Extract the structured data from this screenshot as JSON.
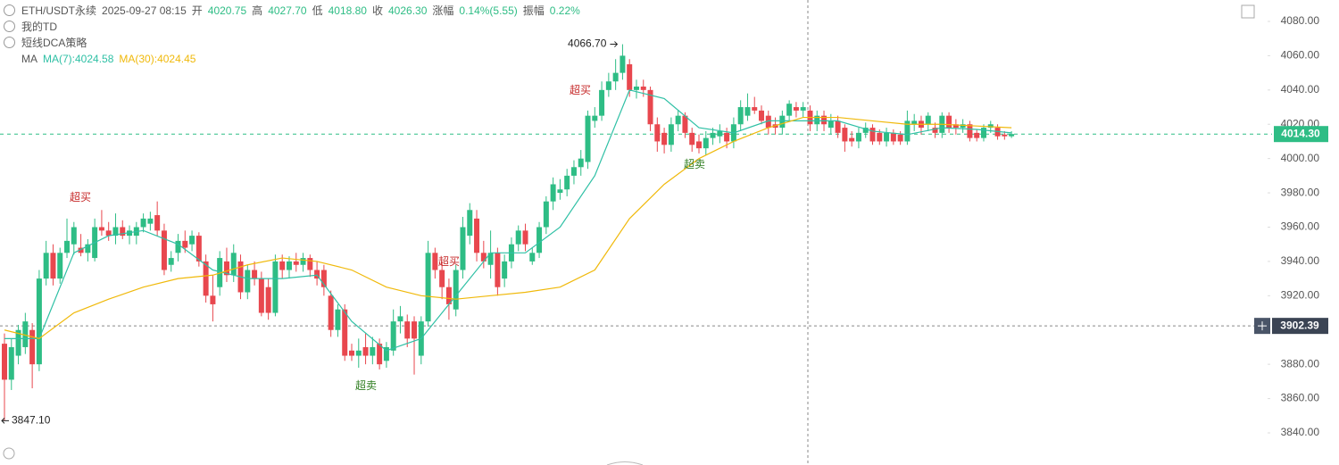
{
  "header": {
    "symbol": "ETH/USDT永续",
    "time": "2025-09-27 08:15",
    "fields": [
      {
        "label": "开",
        "value": "4020.75"
      },
      {
        "label": "高",
        "value": "4027.70"
      },
      {
        "label": "低",
        "value": "4018.80"
      },
      {
        "label": "收",
        "value": "4026.30"
      },
      {
        "label": "涨幅",
        "value": "0.14%(5.55)"
      },
      {
        "label": "振幅",
        "value": "0.22%"
      }
    ],
    "indicators": [
      "我的TD",
      "短线DCA策略"
    ],
    "ma_label": "MA"
  },
  "chart_data": {
    "type": "candlestick",
    "up_color": "#2ebd85",
    "down_color": "#e8474e",
    "ylim": [
      3821.25,
      4092.5
    ],
    "yticks": [
      {
        "value": 3840,
        "label": "3840.00"
      },
      {
        "value": 3860,
        "label": "3860.00"
      },
      {
        "value": 3880,
        "label": "3880.00"
      },
      {
        "value": 3900,
        "label": "3900.00"
      },
      {
        "value": 3920,
        "label": "3920.00"
      },
      {
        "value": 3940,
        "label": "3940.00"
      },
      {
        "value": 3960,
        "label": "3960.00"
      },
      {
        "value": 3980,
        "label": "3980.00"
      },
      {
        "value": 4000,
        "label": "4000.00"
      },
      {
        "value": 4020,
        "label": "4020.00"
      },
      {
        "value": 4040,
        "label": "4040.00"
      },
      {
        "value": 4060,
        "label": "4060.00"
      },
      {
        "value": 4080,
        "label": "4080.00"
      }
    ],
    "grid": false,
    "candles": [
      [
        3892,
        3898,
        3847.1,
        3871
      ],
      [
        3871,
        3895,
        3865,
        3890
      ],
      [
        3885,
        3903,
        3880,
        3900
      ],
      [
        3890,
        3910,
        3886,
        3905
      ],
      [
        3900,
        3904,
        3866,
        3880
      ],
      [
        3880,
        3935,
        3876,
        3930
      ],
      [
        3930,
        3952,
        3926,
        3945
      ],
      [
        3945,
        3950,
        3926,
        3930
      ],
      [
        3930,
        3948,
        3927,
        3945
      ],
      [
        3945,
        3965,
        3942,
        3952
      ],
      [
        3950,
        3963,
        3944,
        3960
      ],
      [
        3948,
        3956,
        3943,
        3945
      ],
      [
        3945,
        3953,
        3940,
        3950
      ],
      [
        3942,
        3965,
        3940,
        3960
      ],
      [
        3960,
        3970,
        3955,
        3958
      ],
      [
        3958,
        3963,
        3952,
        3955
      ],
      [
        3955,
        3968,
        3950,
        3960
      ],
      [
        3960,
        3964,
        3953,
        3955
      ],
      [
        3955,
        3961,
        3950,
        3958
      ],
      [
        3955,
        3963,
        3950,
        3960
      ],
      [
        3960,
        3968,
        3957,
        3965
      ],
      [
        3962,
        3969,
        3958,
        3965
      ],
      [
        3967,
        3975,
        3955,
        3958
      ],
      [
        3958,
        3962,
        3932,
        3935
      ],
      [
        3938,
        3946,
        3934,
        3942
      ],
      [
        3945,
        3956,
        3940,
        3952
      ],
      [
        3952,
        3958,
        3945,
        3948
      ],
      [
        3950,
        3958,
        3946,
        3955
      ],
      [
        3955,
        3957,
        3937,
        3940
      ],
      [
        3940,
        3944,
        3916,
        3920
      ],
      [
        3920,
        3932,
        3905,
        3915
      ],
      [
        3925,
        3946,
        3920,
        3942
      ],
      [
        3940,
        3948,
        3928,
        3932
      ],
      [
        3932,
        3950,
        3928,
        3945
      ],
      [
        3940,
        3944,
        3918,
        3922
      ],
      [
        3922,
        3938,
        3918,
        3935
      ],
      [
        3935,
        3940,
        3926,
        3930
      ],
      [
        3930,
        3934,
        3908,
        3910
      ],
      [
        3925,
        3930,
        3906,
        3910
      ],
      [
        3910,
        3944,
        3908,
        3940
      ],
      [
        3940,
        3944,
        3930,
        3935
      ],
      [
        3935,
        3943,
        3930,
        3940
      ],
      [
        3940,
        3945,
        3934,
        3938
      ],
      [
        3938,
        3945,
        3934,
        3942
      ],
      [
        3942,
        3944,
        3931,
        3935
      ],
      [
        3935,
        3940,
        3926,
        3930
      ],
      [
        3935,
        3938,
        3920,
        3925
      ],
      [
        3920,
        3923,
        3896,
        3900
      ],
      [
        3900,
        3915,
        3896,
        3912
      ],
      [
        3912,
        3915,
        3882,
        3885
      ],
      [
        3888,
        3892,
        3882,
        3885
      ],
      [
        3885,
        3895,
        3878,
        3888
      ],
      [
        3890,
        3898,
        3880,
        3885
      ],
      [
        3885,
        3896,
        3880,
        3890
      ],
      [
        3892,
        3895,
        3877,
        3880
      ],
      [
        3882,
        3893,
        3878,
        3890
      ],
      [
        3888,
        3912,
        3885,
        3905
      ],
      [
        3905,
        3914,
        3898,
        3908
      ],
      [
        3905,
        3909,
        3890,
        3895
      ],
      [
        3905,
        3908,
        3874,
        3895
      ],
      [
        3885,
        3908,
        3880,
        3905
      ],
      [
        3905,
        3952,
        3902,
        3945
      ],
      [
        3945,
        3948,
        3930,
        3935
      ],
      [
        3935,
        3940,
        3918,
        3925
      ],
      [
        3925,
        3930,
        3906,
        3915
      ],
      [
        3912,
        3938,
        3908,
        3935
      ],
      [
        3935,
        3966,
        3930,
        3960
      ],
      [
        3955,
        3974,
        3950,
        3970
      ],
      [
        3965,
        3970,
        3940,
        3945
      ],
      [
        3945,
        3952,
        3936,
        3940
      ],
      [
        3938,
        3958,
        3930,
        3945
      ],
      [
        3945,
        3948,
        3920,
        3925
      ],
      [
        3930,
        3944,
        3925,
        3940
      ],
      [
        3940,
        3954,
        3936,
        3950
      ],
      [
        3950,
        3961,
        3946,
        3958
      ],
      [
        3958,
        3962,
        3946,
        3950
      ],
      [
        3940,
        3948,
        3938,
        3945
      ],
      [
        3945,
        3963,
        3942,
        3960
      ],
      [
        3960,
        3978,
        3956,
        3975
      ],
      [
        3975,
        3989,
        3970,
        3985
      ],
      [
        3980,
        3988,
        3976,
        3982
      ],
      [
        3982,
        3994,
        3978,
        3990
      ],
      [
        3990,
        3999,
        3985,
        3995
      ],
      [
        3995,
        4005,
        3990,
        4000
      ],
      [
        3998,
        4028,
        3994,
        4025
      ],
      [
        4022,
        4030,
        4018,
        4025
      ],
      [
        4025,
        4045,
        4022,
        4040
      ],
      [
        4040,
        4050,
        4036,
        4045
      ],
      [
        4045,
        4058,
        4040,
        4050
      ],
      [
        4050,
        4066.7,
        4046,
        4060
      ],
      [
        4055,
        4058,
        4036,
        4040
      ],
      [
        4040,
        4046,
        4035,
        4042
      ],
      [
        4042,
        4046,
        4036,
        4040
      ],
      [
        4040,
        4042,
        4016,
        4020
      ],
      [
        4020,
        4024,
        4004,
        4010
      ],
      [
        4015,
        4018,
        4003,
        4008
      ],
      [
        4008,
        4024,
        4004,
        4020
      ],
      [
        4020,
        4028,
        4016,
        4025
      ],
      [
        4025,
        4027,
        4012,
        4015
      ],
      [
        4015,
        4018,
        4004,
        4008
      ],
      [
        4010,
        4014,
        4003,
        4006
      ],
      [
        4006,
        4016,
        4002,
        4012
      ],
      [
        4012,
        4018,
        4008,
        4015
      ],
      [
        4013,
        4020,
        4009,
        4016
      ],
      [
        4015,
        4018,
        4006,
        4010
      ],
      [
        4010,
        4024,
        4006,
        4020
      ],
      [
        4020,
        4034,
        4016,
        4030
      ],
      [
        4025,
        4038,
        4022,
        4030
      ],
      [
        4030,
        4036,
        4026,
        4028
      ],
      [
        4028,
        4031,
        4020,
        4022
      ],
      [
        4025,
        4028,
        4014,
        4018
      ],
      [
        4020,
        4024,
        4014,
        4018
      ],
      [
        4018,
        4028,
        4014,
        4025
      ],
      [
        4025,
        4034,
        4022,
        4032
      ],
      [
        4030,
        4033,
        4024,
        4028
      ],
      [
        4028,
        4033,
        4024,
        4030
      ],
      [
        4028,
        4031,
        4016,
        4020
      ],
      [
        4020,
        4028,
        4016,
        4025
      ],
      [
        4025,
        4028,
        4016,
        4020
      ],
      [
        4018,
        4026,
        4014,
        4022
      ],
      [
        4022,
        4025,
        4012,
        4015
      ],
      [
        4018,
        4020,
        4004,
        4010
      ],
      [
        4012,
        4016,
        4007,
        4010
      ],
      [
        4010,
        4018,
        4006,
        4015
      ],
      [
        4015,
        4021,
        4012,
        4018
      ],
      [
        4018,
        4020,
        4008,
        4010
      ],
      [
        4015,
        4017,
        4008,
        4010
      ],
      [
        4010,
        4018,
        4007,
        4015
      ],
      [
        4015,
        4017,
        4008,
        4010
      ],
      [
        4014,
        4016,
        4008,
        4010
      ],
      [
        4010,
        4028,
        4008,
        4022
      ],
      [
        4020,
        4026,
        4016,
        4022
      ],
      [
        4022,
        4025,
        4014,
        4018
      ],
      [
        4020,
        4027,
        4016,
        4025
      ],
      [
        4018,
        4021,
        4012,
        4015
      ],
      [
        4015,
        4027,
        4012,
        4025
      ],
      [
        4025,
        4027,
        4015,
        4018
      ],
      [
        4020,
        4023,
        4014,
        4018
      ],
      [
        4018,
        4023,
        4015,
        4020
      ],
      [
        4020,
        4022,
        4010,
        4012
      ],
      [
        4015,
        4017,
        4010,
        4012
      ],
      [
        4012,
        4020,
        4010,
        4018
      ],
      [
        4018,
        4022,
        4015,
        4020
      ],
      [
        4018,
        4020,
        4011,
        4013
      ],
      [
        4014,
        4016,
        4011,
        4013
      ],
      [
        4013,
        4016,
        4012,
        4014.3
      ]
    ],
    "ma_lines": [
      {
        "legend": "MA(7):4024.58",
        "color": "#2fc0a5",
        "x": [
          0,
          5,
          10,
          15,
          20,
          25,
          30,
          35,
          40,
          45,
          50,
          55,
          60,
          65,
          70,
          75,
          80,
          85,
          90,
          95,
          100,
          105,
          110,
          115,
          120,
          125,
          130,
          135,
          140,
          145
        ],
        "values": [
          3895,
          3895,
          3945,
          3955,
          3958,
          3950,
          3935,
          3930,
          3930,
          3932,
          3905,
          3888,
          3895,
          3920,
          3945,
          3945,
          3960,
          3990,
          4040,
          4035,
          4018,
          4015,
          4022,
          4022,
          4022,
          4016,
          4014,
          4018,
          4017,
          4015
        ]
      },
      {
        "legend": "MA(30):4024.45",
        "color": "#f0b90b",
        "x": [
          0,
          5,
          10,
          15,
          20,
          25,
          30,
          35,
          40,
          45,
          50,
          55,
          60,
          65,
          70,
          75,
          80,
          85,
          90,
          95,
          100,
          105,
          110,
          115,
          120,
          125,
          130,
          135,
          140,
          145
        ],
        "values": [
          3900,
          3895,
          3910,
          3918,
          3925,
          3930,
          3932,
          3938,
          3942,
          3940,
          3935,
          3925,
          3920,
          3918,
          3920,
          3922,
          3925,
          3935,
          3965,
          3985,
          4000,
          4010,
          4018,
          4024,
          4024,
          4022,
          4020,
          4020,
          4019,
          4018
        ]
      }
    ],
    "annotations": [
      {
        "text": "超买",
        "color": "#c62828"
      },
      {
        "text": "超买",
        "color": "#c62828"
      },
      {
        "text": "超买",
        "color": "#c62828"
      },
      {
        "text": "超卖",
        "color": "#2e7d1f"
      },
      {
        "text": "超卖",
        "color": "#2e7d1f"
      }
    ],
    "high_mark": {
      "value": 4066.7,
      "label": "4066.70"
    },
    "low_mark": {
      "value": 3847.1,
      "label": "3847.10"
    },
    "last_price": {
      "value": 4014.3,
      "label": "4014.30"
    },
    "crosshair_price": 3902.39
  }
}
